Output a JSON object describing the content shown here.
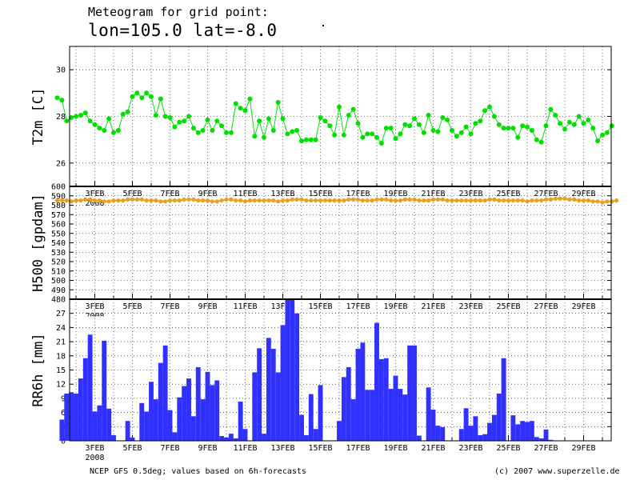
{
  "header": {
    "line1": "Meteogram for grid point:",
    "line2": "lon=105.0 lat=-8.0"
  },
  "footer": {
    "left": "NCEP GFS 0.5deg; values based on 6h-forecasts",
    "right": "(c) 2007 www.superzelle.de"
  },
  "chart_data": [
    {
      "type": "line",
      "ylabel": "T2m [C]",
      "ylim": [
        25,
        31
      ],
      "yticks": [
        26,
        28,
        30
      ],
      "color": "#00e000",
      "x_start_day": 1,
      "step_days": 0.25,
      "x_tick_labels": [
        "3FEB",
        "5FEB",
        "7FEB",
        "9FEB",
        "11FEB",
        "13FEB",
        "15FEB",
        "17FEB",
        "19FEB",
        "21FEB",
        "23FEB",
        "25FEB",
        "27FEB",
        "29FEB"
      ],
      "year_label": "2008",
      "grid": true,
      "values": [
        28.8,
        28.7,
        27.8,
        27.95,
        28.0,
        28.05,
        28.15,
        27.8,
        27.65,
        27.5,
        27.4,
        27.9,
        27.3,
        27.4,
        28.1,
        28.2,
        28.85,
        29.0,
        28.8,
        29.0,
        28.85,
        28.05,
        28.75,
        28.0,
        27.95,
        27.55,
        27.75,
        27.8,
        28.0,
        27.5,
        27.3,
        27.4,
        27.85,
        27.4,
        27.8,
        27.6,
        27.3,
        27.3,
        28.55,
        28.35,
        28.25,
        28.75,
        27.15,
        27.8,
        27.1,
        27.9,
        27.4,
        28.6,
        27.9,
        27.25,
        27.35,
        27.4,
        26.95,
        27.0,
        27.0,
        27.0,
        27.95,
        27.8,
        27.6,
        27.2,
        28.4,
        27.2,
        28.05,
        28.3,
        27.7,
        27.1,
        27.25,
        27.25,
        27.1,
        26.85,
        27.5,
        27.5,
        27.05,
        27.25,
        27.65,
        27.6,
        27.9,
        27.65,
        27.3,
        28.05,
        27.4,
        27.35,
        27.95,
        27.85,
        27.4,
        27.15,
        27.3,
        27.55,
        27.25,
        27.7,
        27.8,
        28.25,
        28.4,
        28.0,
        27.65,
        27.5,
        27.5,
        27.5,
        27.1,
        27.6,
        27.55,
        27.4,
        27.0,
        26.9,
        27.6,
        28.3,
        28.05,
        27.7,
        27.45,
        27.75,
        27.65,
        28.0,
        27.7,
        27.85,
        27.5,
        26.95,
        27.2,
        27.3,
        27.6
      ]
    },
    {
      "type": "line",
      "ylabel": "H500 [gpdam]",
      "ylim": [
        480,
        600
      ],
      "yticks": [
        480,
        490,
        500,
        510,
        520,
        530,
        540,
        550,
        560,
        570,
        580,
        590,
        600
      ],
      "color": "#e8a020",
      "x_start_day": 1,
      "step_days": 0.25,
      "x_tick_labels": [
        "3FEB",
        "5FEB",
        "7FEB",
        "9FEB",
        "11FEB",
        "13FEB",
        "15FEB",
        "17FEB",
        "19FEB",
        "21FEB",
        "23FEB",
        "25FEB",
        "27FEB",
        "29FEB"
      ],
      "year_label": "2008",
      "grid": true,
      "values": [
        585,
        585,
        585,
        584,
        585,
        585,
        586,
        586,
        585,
        585,
        584,
        584,
        585,
        585,
        585,
        586,
        586,
        586,
        586,
        585,
        585,
        585,
        584,
        584,
        585,
        585,
        585,
        586,
        586,
        586,
        585,
        585,
        585,
        584,
        584,
        585,
        586,
        586,
        585,
        585,
        584,
        585,
        585,
        585,
        585,
        585,
        585,
        584,
        585,
        585,
        586,
        586,
        586,
        585,
        585,
        585,
        585,
        585,
        585,
        585,
        585,
        585,
        586,
        586,
        586,
        585,
        585,
        585,
        586,
        586,
        586,
        585,
        585,
        585,
        586,
        586,
        586,
        585,
        585,
        585,
        586,
        586,
        586,
        585,
        585,
        585,
        585,
        585,
        585,
        585,
        585,
        585,
        586,
        586,
        585,
        585,
        585,
        585,
        585,
        585,
        584,
        585,
        585,
        585,
        586,
        586,
        587,
        587,
        587,
        586,
        586,
        585,
        585,
        585,
        584,
        584,
        583,
        584,
        584,
        585
      ]
    },
    {
      "type": "bar",
      "ylabel": "RR6h [mm]",
      "ylim": [
        0,
        30
      ],
      "yticks": [
        0,
        3,
        6,
        9,
        12,
        15,
        18,
        21,
        24,
        27
      ],
      "color": "#3030ff",
      "x_start_day": 1,
      "step_days": 0.25,
      "x_tick_labels": [
        "3FEB",
        "5FEB",
        "7FEB",
        "9FEB",
        "11FEB",
        "13FEB",
        "15FEB",
        "17FEB",
        "19FEB",
        "21FEB",
        "23FEB",
        "25FEB",
        "27FEB",
        "29FEB"
      ],
      "year_label": "2008",
      "grid": true,
      "values": [
        0,
        4.5,
        10,
        10.3,
        10,
        13.2,
        17.5,
        22.5,
        6.2,
        7.5,
        21.2,
        6.8,
        1.2,
        0,
        0,
        4.2,
        0.7,
        0,
        8,
        6.2,
        12.5,
        8.8,
        16.5,
        20.2,
        6.5,
        1.8,
        9.2,
        11.6,
        13.2,
        5.2,
        15.6,
        8.8,
        14.6,
        11.8,
        12.8,
        1,
        0.7,
        1.5,
        0.5,
        8.3,
        2.5,
        0,
        14.5,
        19.6,
        1.5,
        21.8,
        19.5,
        14.5,
        24.5,
        30,
        30,
        27,
        5.5,
        1.2,
        9.9,
        2.5,
        11.8,
        0,
        0,
        0,
        4.2,
        13.5,
        15.6,
        8.8,
        19.5,
        20.8,
        10.8,
        10.8,
        25,
        17.3,
        17.5,
        11,
        13.8,
        11,
        9.8,
        20.2,
        20.2,
        1.1,
        0,
        11.3,
        6.6,
        3.2,
        2.9,
        0,
        0,
        0,
        2.5,
        6.9,
        3.2,
        5.2,
        1.2,
        1.4,
        3.8,
        5.5,
        10,
        17.5,
        0,
        5.4,
        3.5,
        4.2,
        4,
        4.2,
        0.8,
        0.5,
        2.4,
        0.2
      ]
    }
  ]
}
